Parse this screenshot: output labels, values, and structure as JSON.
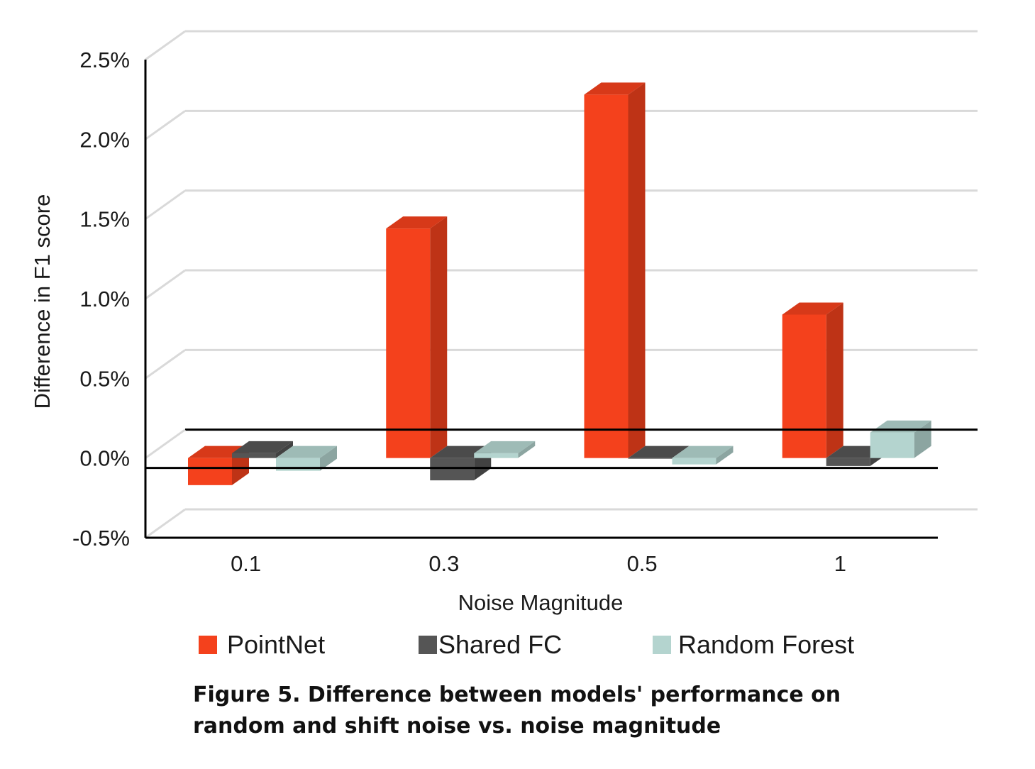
{
  "chart_data": {
    "type": "bar",
    "style": "3d-clustered",
    "categories": [
      "0.1",
      "0.3",
      "0.5",
      "1"
    ],
    "series": [
      {
        "name": "PointNet",
        "values": [
          -0.17,
          1.44,
          2.28,
          0.9
        ],
        "color": "#f4411c"
      },
      {
        "name": "Shared FC",
        "values": [
          0.03,
          -0.14,
          0.0,
          -0.05
        ],
        "color": "#555555"
      },
      {
        "name": "Random Forest",
        "values": [
          -0.08,
          0.03,
          -0.04,
          0.16
        ],
        "color": "#b4d4cf"
      }
    ],
    "xlabel": "Noise Magnitude",
    "ylabel": "Difference in F1 score",
    "ylim": [
      -0.5,
      2.5
    ],
    "yticks": [
      "-0.5%",
      "0.0%",
      "0.5%",
      "1.0%",
      "1.5%",
      "2.0%",
      "2.5%"
    ],
    "grid": true,
    "legend_position": "bottom"
  },
  "caption": {
    "line1": "Figure 5. Difference between models' performance on",
    "line2": "random and shift noise vs. noise magnitude"
  }
}
